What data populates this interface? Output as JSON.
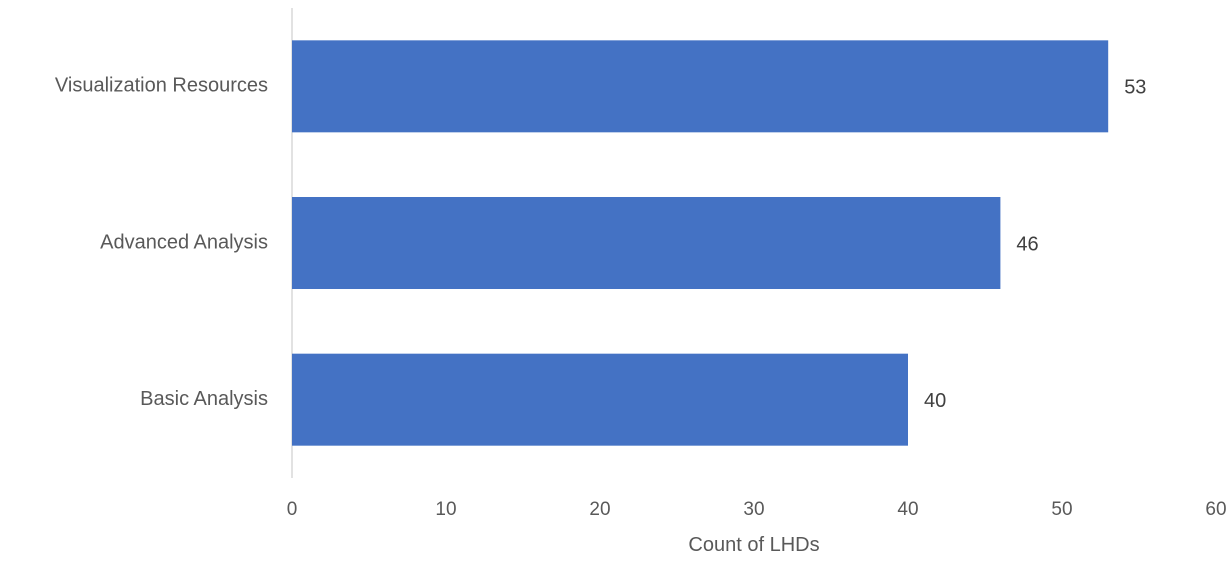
{
  "chart_data": {
    "type": "bar",
    "orientation": "horizontal",
    "categories": [
      "Visualization Resources",
      "Advanced Analysis",
      "Basic Analysis"
    ],
    "values": [
      53,
      46,
      40
    ],
    "title": "",
    "xlabel": "Count of LHDs",
    "ylabel": "",
    "xlim": [
      0,
      60
    ],
    "xticks": [
      0,
      10,
      20,
      30,
      40,
      50,
      60
    ],
    "grid": false,
    "legend": "none",
    "data_labels": true,
    "colors": {
      "bar": "#4472C4",
      "axis": "#D9D9D9",
      "text": "#595959",
      "label": "#404040"
    }
  }
}
